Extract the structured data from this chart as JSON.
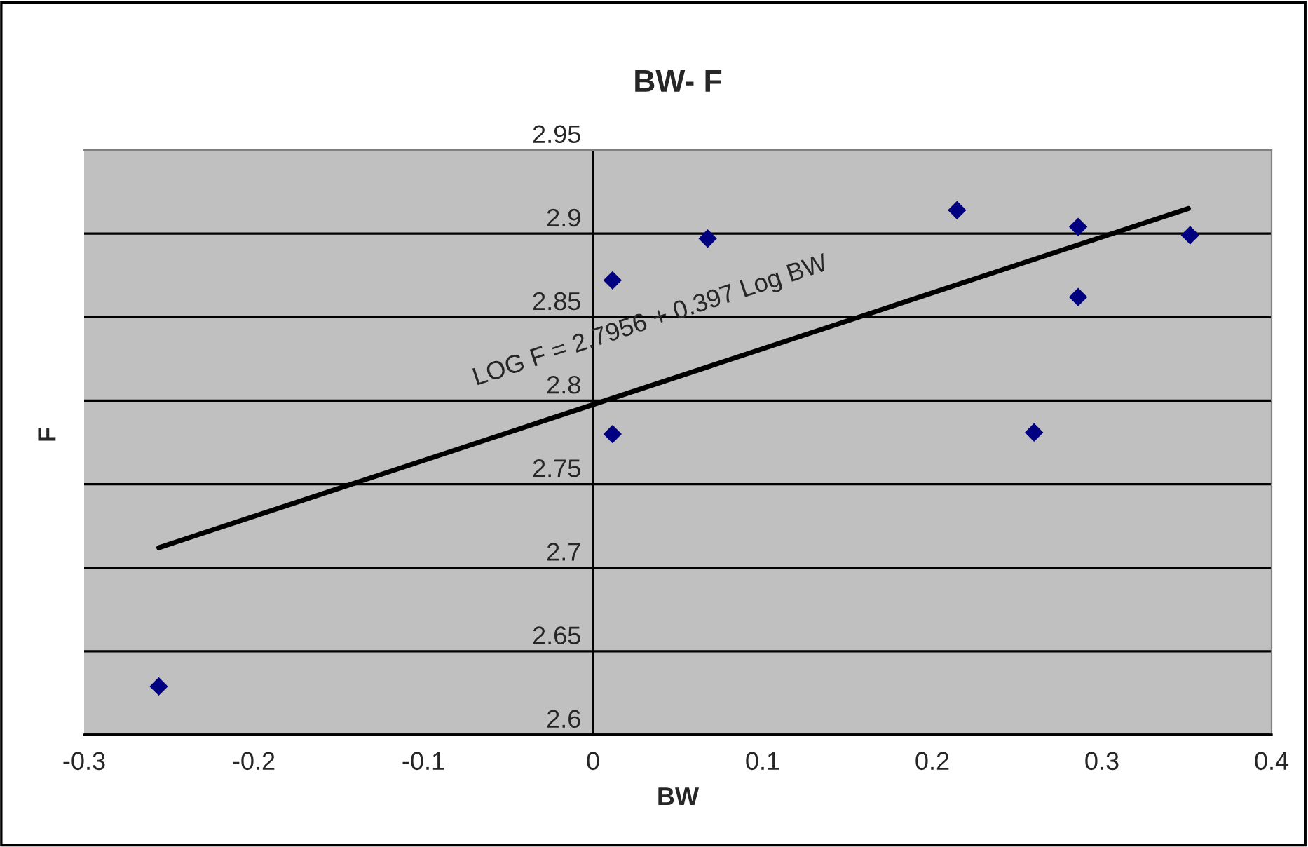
{
  "chart_data": {
    "type": "scatter",
    "title": "BW- F",
    "xlabel": "BW",
    "ylabel": "F",
    "series": [
      {
        "color": "#000080",
        "marker": "diamond",
        "x": [
          -0.256,
          0.0115,
          0.0115,
          0.0676,
          0.2146,
          0.286,
          0.286,
          0.26,
          0.352
        ],
        "values": [
          2.629,
          2.872,
          2.78,
          2.897,
          2.914,
          2.904,
          2.862,
          2.781,
          2.899
        ]
      },
      {
        "type": "line",
        "color": "#000000",
        "marker": "none",
        "line_style": "solid",
        "x": [
          -0.256,
          0.351
        ],
        "values": [
          2.712,
          2.915
        ]
      }
    ],
    "annotations": [
      "LOG F = 2.7956 + 0.397 Log BW"
    ],
    "xlim": [
      -0.3,
      0.4
    ],
    "xticks": [
      -0.3,
      -0.2,
      -0.1,
      0,
      0.1,
      0.2,
      0.3,
      0.4
    ],
    "ylim": [
      2.6,
      2.95
    ],
    "yticks": [
      2.6,
      2.65,
      2.7,
      2.75,
      2.8,
      2.85,
      2.9,
      2.95
    ],
    "grid": "y",
    "legend": false
  }
}
